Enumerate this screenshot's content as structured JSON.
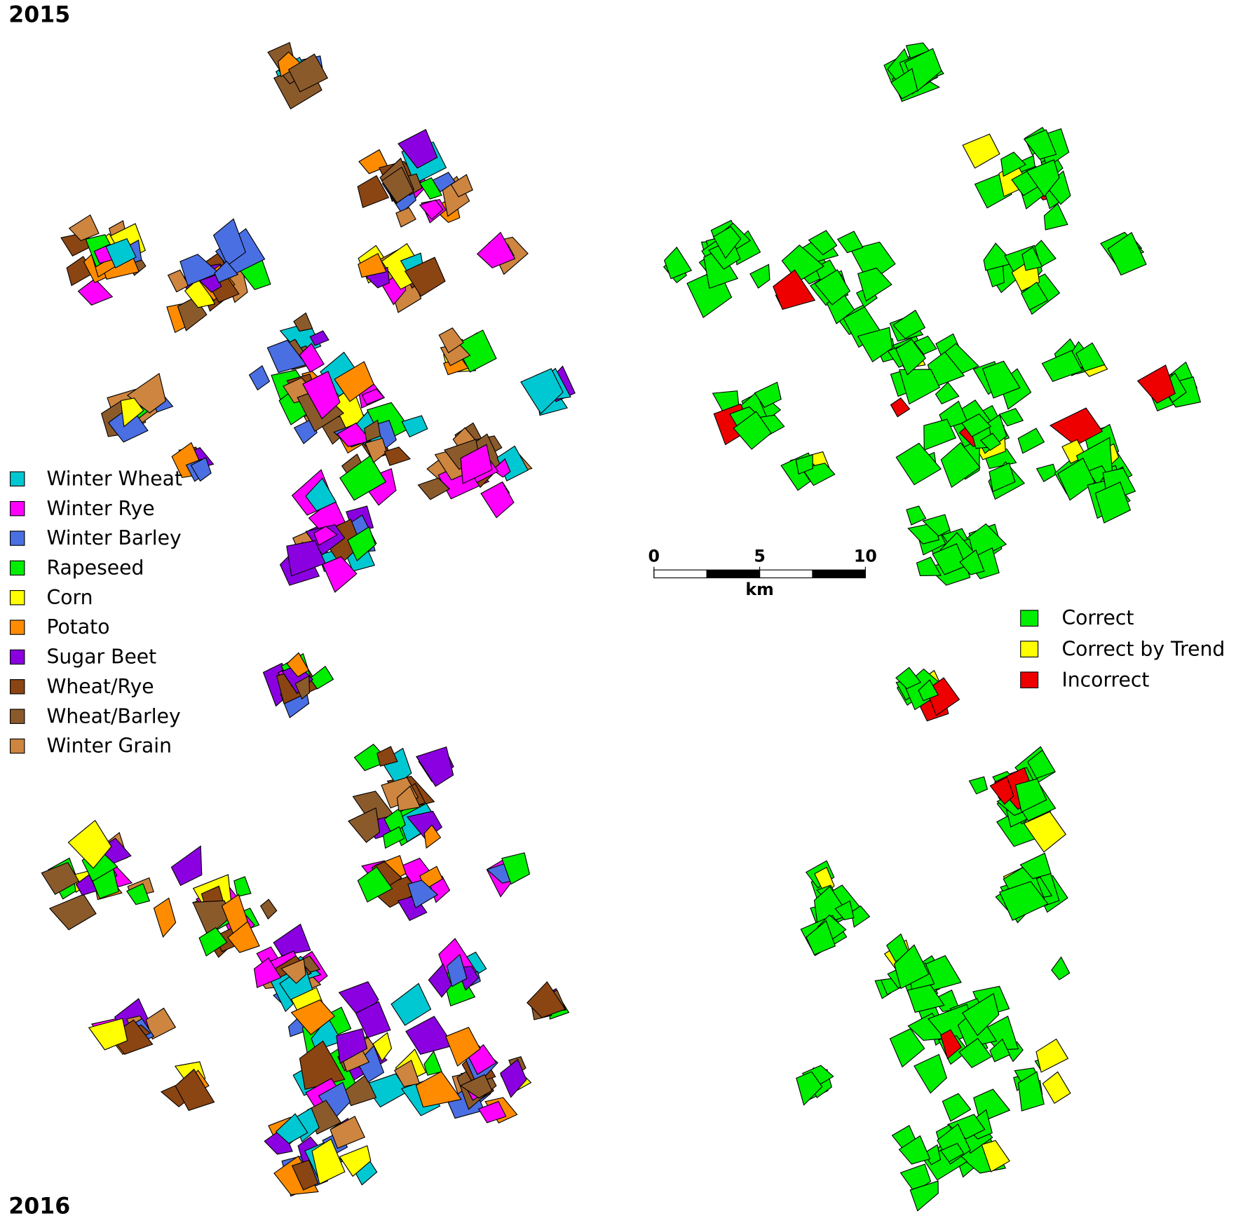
{
  "maps": {
    "year_top": "2015",
    "year_bottom": "2016"
  },
  "crop_legend": [
    {
      "label": "Winter Wheat",
      "color": "#00c8d2"
    },
    {
      "label": "Winter Rye",
      "color": "#ff00ff"
    },
    {
      "label": "Winter Barley",
      "color": "#4a6fe3"
    },
    {
      "label": "Rapeseed",
      "color": "#00ee00"
    },
    {
      "label": "Corn",
      "color": "#ffff00"
    },
    {
      "label": "Potato",
      "color": "#ff8c00"
    },
    {
      "label": "Sugar Beet",
      "color": "#8b00e0"
    },
    {
      "label": "Wheat/Rye",
      "color": "#8b4513"
    },
    {
      "label": "Wheat/Barley",
      "color": "#8b5a2b"
    },
    {
      "label": "Winter Grain",
      "color": "#cd853f"
    }
  ],
  "accuracy_legend": [
    {
      "label": "Correct",
      "color": "#00ee00"
    },
    {
      "label": "Correct by Trend",
      "color": "#ffff00"
    },
    {
      "label": "Incorrect",
      "color": "#ee0000"
    }
  ],
  "scale_bar": {
    "ticks": [
      0,
      5,
      10
    ],
    "unit": "km"
  }
}
